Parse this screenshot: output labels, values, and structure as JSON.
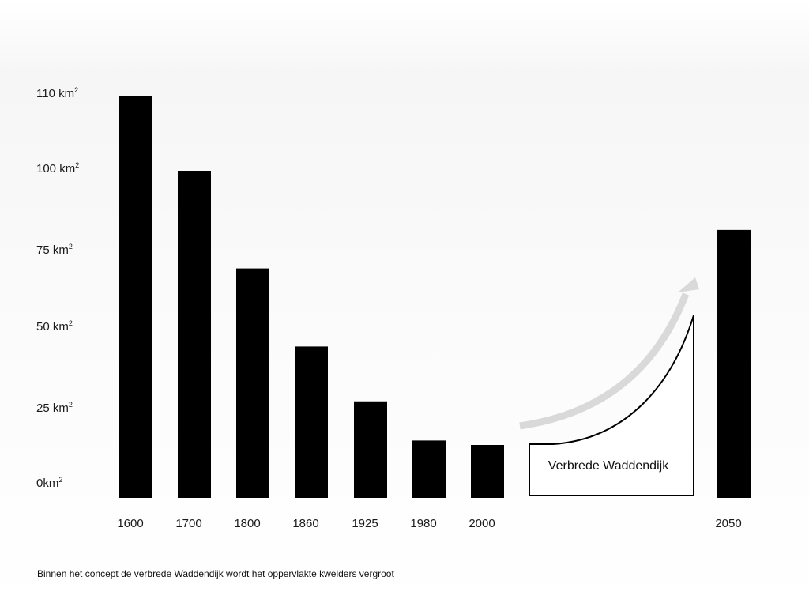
{
  "chart_data": {
    "type": "bar",
    "categories": [
      "1600",
      "1700",
      "1800",
      "1860",
      "1925",
      "1980",
      "2000",
      "2050"
    ],
    "values": [
      110,
      100,
      70,
      45,
      28,
      15,
      13.5,
      82
    ],
    "ylabel": "",
    "xlabel": "",
    "ytick_labels": [
      {
        "value": 0,
        "num": "0km",
        "sup": "2"
      },
      {
        "value": 25,
        "num": "25 km",
        "sup": "2"
      },
      {
        "value": 50,
        "num": "50 km",
        "sup": "2"
      },
      {
        "value": 75,
        "num": "75 km",
        "sup": "2"
      },
      {
        "value": 100,
        "num": "100 km",
        "sup": "2"
      },
      {
        "value": 110,
        "num": "110 km",
        "sup": "2"
      }
    ],
    "annotation": {
      "label": "Verbrede Waddendijk",
      "between": [
        "2000",
        "2050"
      ]
    },
    "colors": {
      "bar": "#000000",
      "arrow": "#d9d9d9"
    }
  },
  "caption": "Binnen het concept de verbrede Waddendijk wordt het oppervlakte kwelders vergroot"
}
